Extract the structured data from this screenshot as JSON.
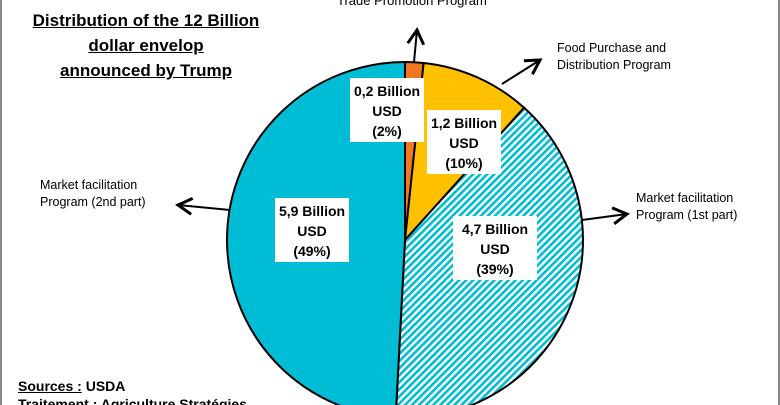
{
  "title_lines": [
    "Distribution of the 12 Billion",
    "dollar envelop",
    "announced by Trump"
  ],
  "sources": {
    "label": "Sources :",
    "value": "USDA",
    "line2": "Traitement : Agriculture Stratégies"
  },
  "chart_data": {
    "type": "pie",
    "title": "Distribution of the 12 Billion dollar envelop announced by Trump",
    "start": "top, clockwise",
    "slices": [
      {
        "name": "Trade Promotion Program",
        "value": 0.2,
        "unit": "Billion USD",
        "percent": 2,
        "label": [
          "0,2 Billion",
          "USD",
          "(2%)"
        ],
        "color": "#F07820",
        "pattern": "solid"
      },
      {
        "name": "Food Purchase and Distribution Program",
        "value": 1.2,
        "unit": "Billion USD",
        "percent": 10,
        "label": [
          "1,2 Billion",
          "USD",
          "(10%)"
        ],
        "color": "#FFC000",
        "pattern": "solid"
      },
      {
        "name": "Market facilitation Program (1st part)",
        "value": 4.7,
        "unit": "Billion USD",
        "percent": 39,
        "label": [
          "4,7 Billion",
          "USD",
          "(39%)"
        ],
        "color": "#00BCD4",
        "pattern": "diagonal-hatch"
      },
      {
        "name": "Market facilitation Program (2nd part)",
        "value": 5.9,
        "unit": "Billion USD",
        "percent": 49,
        "label": [
          "5,9 Billion",
          "USD",
          "(49%)"
        ],
        "color": "#00BCD4",
        "pattern": "solid"
      }
    ],
    "callouts": {
      "trade": "Trade Promotion Program",
      "food": [
        "Food Purchase and",
        "Distribution Program"
      ],
      "mfp1": [
        "Market facilitation",
        "Program (1st part)"
      ],
      "mfp2": [
        "Market facilitation",
        "Program (2nd part)"
      ]
    }
  }
}
